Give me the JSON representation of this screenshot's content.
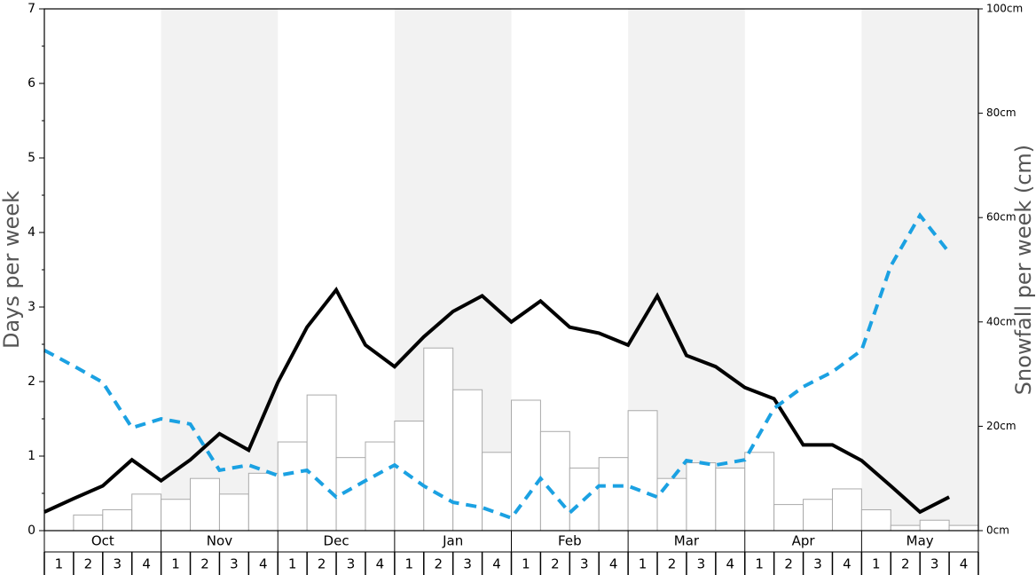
{
  "chart_data": {
    "type": "bar",
    "y_label": "Days per week",
    "y2_label": "Snowfall per week (cm)",
    "months": [
      "Oct",
      "Nov",
      "Dec",
      "Jan",
      "Feb",
      "Mar",
      "Apr",
      "May"
    ],
    "categories": [
      "1",
      "2",
      "3",
      "4",
      "1",
      "2",
      "3",
      "4",
      "1",
      "2",
      "3",
      "4",
      "1",
      "2",
      "3",
      "4",
      "1",
      "2",
      "3",
      "4",
      "1",
      "2",
      "3",
      "4",
      "1",
      "2",
      "3",
      "4",
      "1",
      "2",
      "3",
      "4"
    ],
    "ylim": [
      0,
      7
    ],
    "yticks": [
      0,
      1,
      2,
      3,
      4,
      5,
      6,
      7
    ],
    "y2lim": [
      0,
      100
    ],
    "y2ticks": [
      {
        "value": 0,
        "label": "0cm"
      },
      {
        "value": 20,
        "label": "20cm"
      },
      {
        "value": 40,
        "label": "40cm"
      },
      {
        "value": 60,
        "label": "60cm"
      },
      {
        "value": 80,
        "label": "80cm"
      },
      {
        "value": 100,
        "label": "100cm"
      }
    ],
    "band_color": "#f2f2f2",
    "series": [
      {
        "type": "bar",
        "axis": "y2",
        "color": "#ffffff",
        "values": [
          0,
          3,
          4,
          7,
          6,
          10,
          7,
          11,
          17,
          26,
          14,
          17,
          21,
          35,
          27,
          15,
          25,
          19,
          12,
          14,
          23,
          10,
          13,
          12,
          15,
          5,
          6,
          8,
          4,
          1,
          2,
          1
        ]
      },
      {
        "type": "line",
        "color": "#000000",
        "values": [
          0.25,
          0.43,
          0.6,
          0.95,
          0.67,
          0.95,
          1.3,
          1.08,
          1.99,
          2.73,
          3.23,
          2.49,
          2.2,
          2.6,
          2.94,
          3.15,
          2.8,
          3.08,
          2.73,
          2.65,
          2.49,
          3.15,
          2.35,
          2.2,
          1.92,
          1.77,
          1.15,
          1.15,
          0.94,
          0.6,
          0.25,
          0.45
        ]
      },
      {
        "type": "line",
        "color": "#1ba1e2",
        "dashed": true,
        "values": [
          2.42,
          2.21,
          1.99,
          1.38,
          1.5,
          1.43,
          0.81,
          0.88,
          0.74,
          0.81,
          0.45,
          0.67,
          0.88,
          0.6,
          0.38,
          0.31,
          0.17,
          0.7,
          0.24,
          0.6,
          0.6,
          0.45,
          0.94,
          0.88,
          0.95,
          1.64,
          1.93,
          2.13,
          2.42,
          3.55,
          4.23,
          3.73
        ]
      }
    ]
  }
}
